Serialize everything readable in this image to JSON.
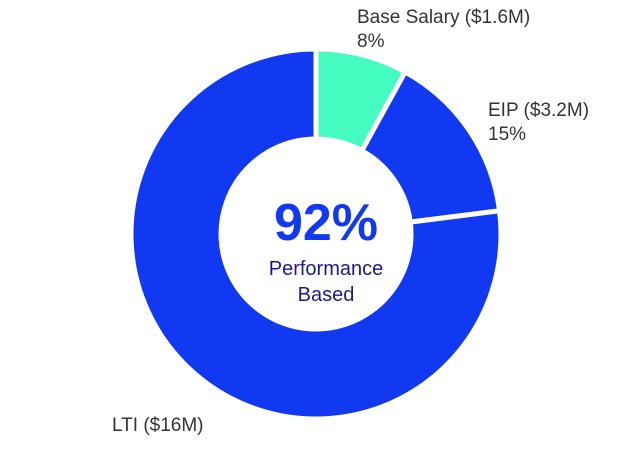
{
  "chart_data": {
    "type": "pie",
    "style": "donut",
    "slices": [
      {
        "label": "Base Salary ($1.6M)",
        "percent_label": "8%",
        "value": 8,
        "color": "#44fbc0"
      },
      {
        "label": "EIP ($3.2M)",
        "percent_label": "15%",
        "value": 15,
        "color": "#1239f2"
      },
      {
        "label": "LTI ($16M)",
        "percent_label": "",
        "value": 77,
        "color": "#1239f2"
      }
    ],
    "center": {
      "value": "92%",
      "caption_line1": "Performance",
      "caption_line2": "Based"
    }
  }
}
